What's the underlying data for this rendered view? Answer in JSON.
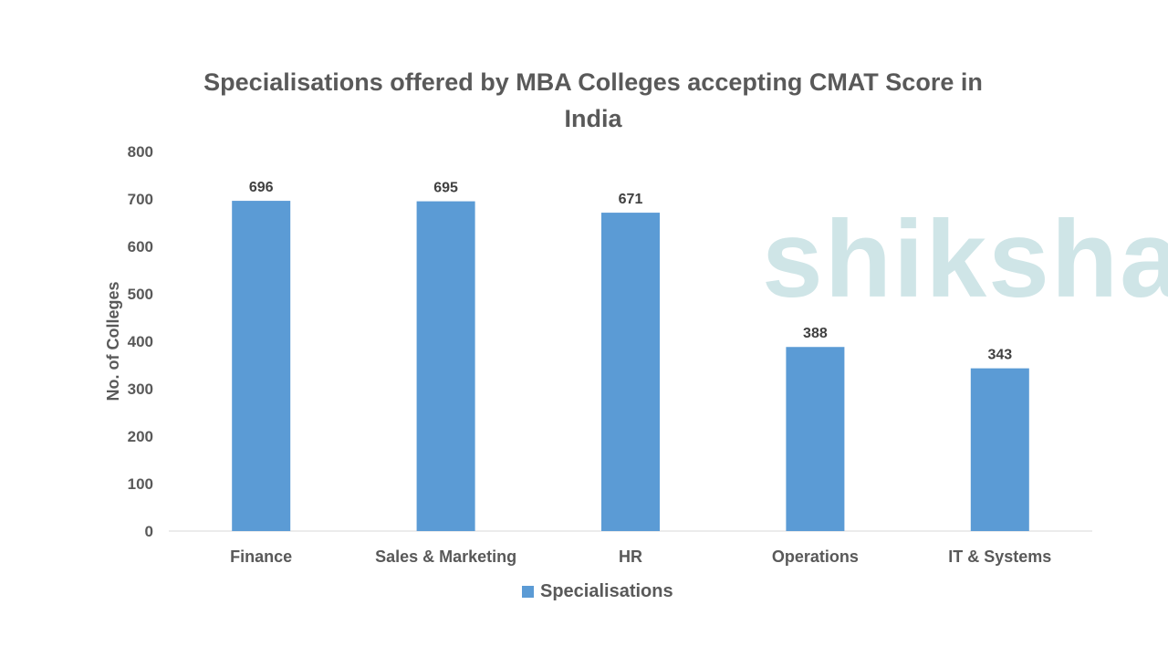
{
  "watermark": {
    "text": "shiksha",
    "color": "#cfe5e7"
  },
  "chart_data": {
    "type": "bar",
    "title": "Specialisations offered by MBA Colleges accepting CMAT Score in India",
    "xlabel": "",
    "ylabel": "No. of Colleges",
    "categories": [
      "Finance",
      "Sales & Marketing",
      "HR",
      "Operations",
      "IT & Systems"
    ],
    "series": [
      {
        "name": "Specialisations",
        "values": [
          696,
          695,
          671,
          388,
          343
        ],
        "color": "#5B9BD5"
      }
    ],
    "ylim": [
      0,
      800
    ],
    "yticks": [
      0,
      100,
      200,
      300,
      400,
      500,
      600,
      700,
      800
    ],
    "grid": false,
    "legend": "bottom",
    "data_labels": true
  }
}
